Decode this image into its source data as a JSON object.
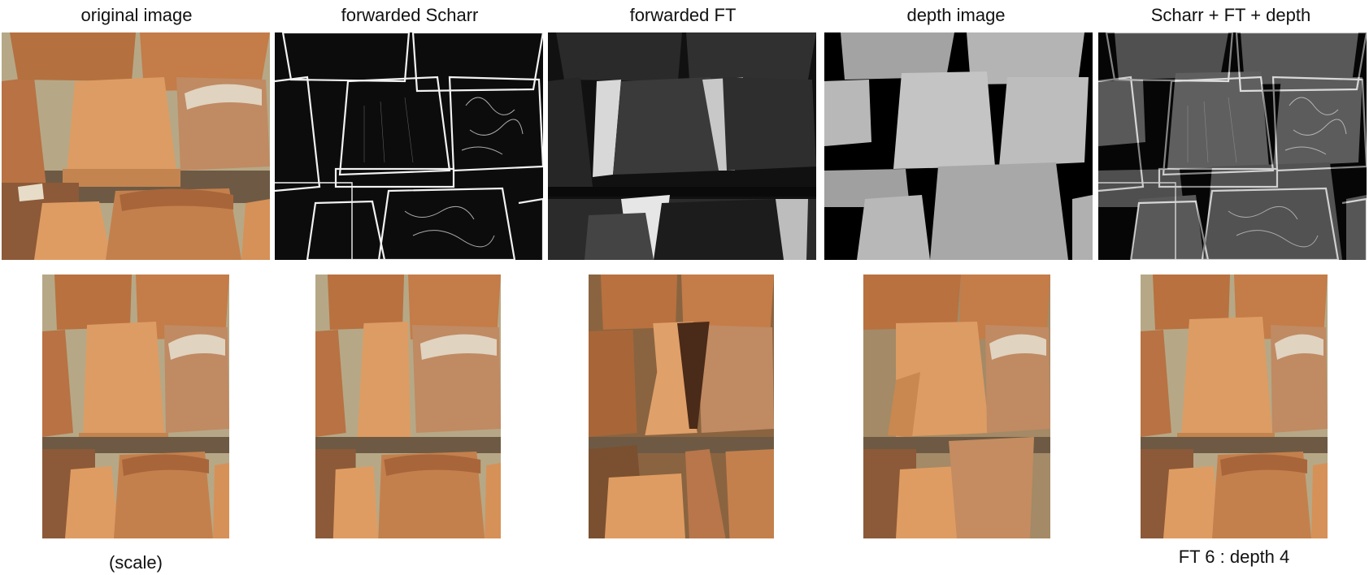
{
  "columns": [
    {
      "title": "original image"
    },
    {
      "title": "forwarded Scharr"
    },
    {
      "title": "forwarded FT"
    },
    {
      "title": "depth image"
    },
    {
      "title": "Scharr + FT + depth"
    }
  ],
  "captions": {
    "scale": "(scale)",
    "ratio": "FT 6 : depth 4"
  },
  "colors": {
    "terracotta": "#c98450",
    "terracotta_light": "#dc9a64",
    "terracotta_dark": "#8f5430",
    "background_wall": "#b9ad8f",
    "depth_near": "#c4c4c4",
    "depth_far": "#a9a9a9"
  }
}
